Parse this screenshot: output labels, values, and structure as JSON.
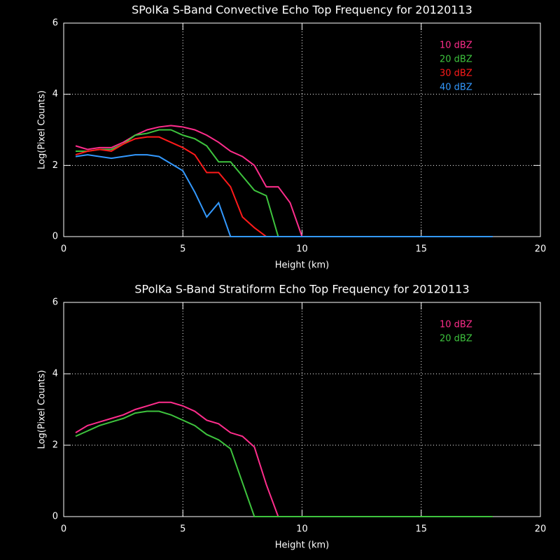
{
  "chart_data": [
    {
      "type": "line",
      "title": "SPolKa S-Band Convective Echo Top Frequency for 20120113",
      "x_label": "Height (km)",
      "y_label": "Log(Pixel Counts)",
      "x": [
        0.5,
        1,
        1.5,
        2,
        2.5,
        3,
        3.5,
        4,
        4.5,
        5,
        5.5,
        6,
        6.5,
        7,
        7.5,
        8,
        8.5,
        9,
        9.5,
        10,
        10.5,
        11,
        11.5,
        12,
        12.5,
        13,
        13.5,
        14,
        14.5,
        15,
        15.5,
        16,
        16.5,
        17,
        17.5,
        18
      ],
      "series": [
        {
          "name": "10 dBZ",
          "color": "#ff2d8c",
          "values": [
            2.55,
            2.45,
            2.5,
            2.5,
            2.65,
            2.85,
            3.0,
            3.08,
            3.12,
            3.08,
            3.0,
            2.85,
            2.65,
            2.4,
            2.25,
            2.0,
            1.4,
            1.4,
            0.95,
            0,
            0,
            0,
            0,
            0,
            0,
            0,
            0,
            0,
            0,
            0,
            0,
            0,
            0,
            0,
            0,
            0
          ]
        },
        {
          "name": "20 dBZ",
          "color": "#3ec43e",
          "values": [
            2.4,
            2.4,
            2.45,
            2.45,
            2.6,
            2.85,
            2.9,
            3.0,
            3.0,
            2.85,
            2.75,
            2.55,
            2.1,
            2.1,
            1.7,
            1.3,
            1.15,
            0,
            0,
            0,
            0,
            0,
            0,
            0,
            0,
            0,
            0,
            0,
            0,
            0,
            0,
            0,
            0,
            0,
            0,
            0
          ]
        },
        {
          "name": "30 dBZ",
          "color": "#ff1a1a",
          "values": [
            2.3,
            2.4,
            2.45,
            2.4,
            2.6,
            2.75,
            2.8,
            2.8,
            2.65,
            2.5,
            2.3,
            1.8,
            1.8,
            1.4,
            0.55,
            0.25,
            0,
            0,
            0,
            0,
            0,
            0,
            0,
            0,
            0,
            0,
            0,
            0,
            0,
            0,
            0,
            0,
            0,
            0,
            0,
            0
          ]
        },
        {
          "name": "40 dBZ",
          "color": "#3399ff",
          "values": [
            2.25,
            2.3,
            2.25,
            2.2,
            2.25,
            2.3,
            2.3,
            2.25,
            2.05,
            1.85,
            1.25,
            0.55,
            0.95,
            0,
            0,
            0,
            0,
            0,
            0,
            0,
            0,
            0,
            0,
            0,
            0,
            0,
            0,
            0,
            0,
            0,
            0,
            0,
            0,
            0,
            0,
            0
          ]
        }
      ],
      "xlim": [
        0,
        20
      ],
      "xticks": [
        0,
        5,
        10,
        15,
        20
      ],
      "ylim": [
        0,
        6
      ],
      "yticks": [
        0,
        2,
        4,
        6
      ],
      "grid": true
    },
    {
      "type": "line",
      "title": "SPolKa S-Band Stratiform Echo Top Frequency for 20120113",
      "x_label": "Height (km)",
      "y_label": "Log(Pixel Counts)",
      "x": [
        0.5,
        1,
        1.5,
        2,
        2.5,
        3,
        3.5,
        4,
        4.5,
        5,
        5.5,
        6,
        6.5,
        7,
        7.5,
        8,
        8.5,
        9,
        9.5,
        10,
        10.5,
        11,
        11.5,
        12,
        12.5,
        13,
        13.5,
        14,
        14.5,
        15,
        15.5,
        16,
        16.5,
        17,
        17.5,
        18
      ],
      "series": [
        {
          "name": "10 dBZ",
          "color": "#ff2d8c",
          "values": [
            2.35,
            2.55,
            2.65,
            2.75,
            2.85,
            3.0,
            3.1,
            3.2,
            3.2,
            3.1,
            2.95,
            2.7,
            2.6,
            2.35,
            2.25,
            1.95,
            0.9,
            0,
            0,
            0,
            0,
            0,
            0,
            0,
            0,
            0,
            0,
            0,
            0,
            0,
            0,
            0,
            0,
            0,
            0,
            0
          ]
        },
        {
          "name": "20 dBZ",
          "color": "#3ec43e",
          "values": [
            2.25,
            2.4,
            2.55,
            2.65,
            2.75,
            2.9,
            2.95,
            2.95,
            2.85,
            2.7,
            2.55,
            2.3,
            2.15,
            1.9,
            0.95,
            0,
            0,
            0,
            0,
            0,
            0,
            0,
            0,
            0,
            0,
            0,
            0,
            0,
            0,
            0,
            0,
            0,
            0,
            0,
            0,
            0
          ]
        }
      ],
      "xlim": [
        0,
        20
      ],
      "xticks": [
        0,
        5,
        10,
        15,
        20
      ],
      "ylim": [
        0,
        6
      ],
      "yticks": [
        0,
        2,
        4,
        6
      ],
      "grid": true
    }
  ]
}
